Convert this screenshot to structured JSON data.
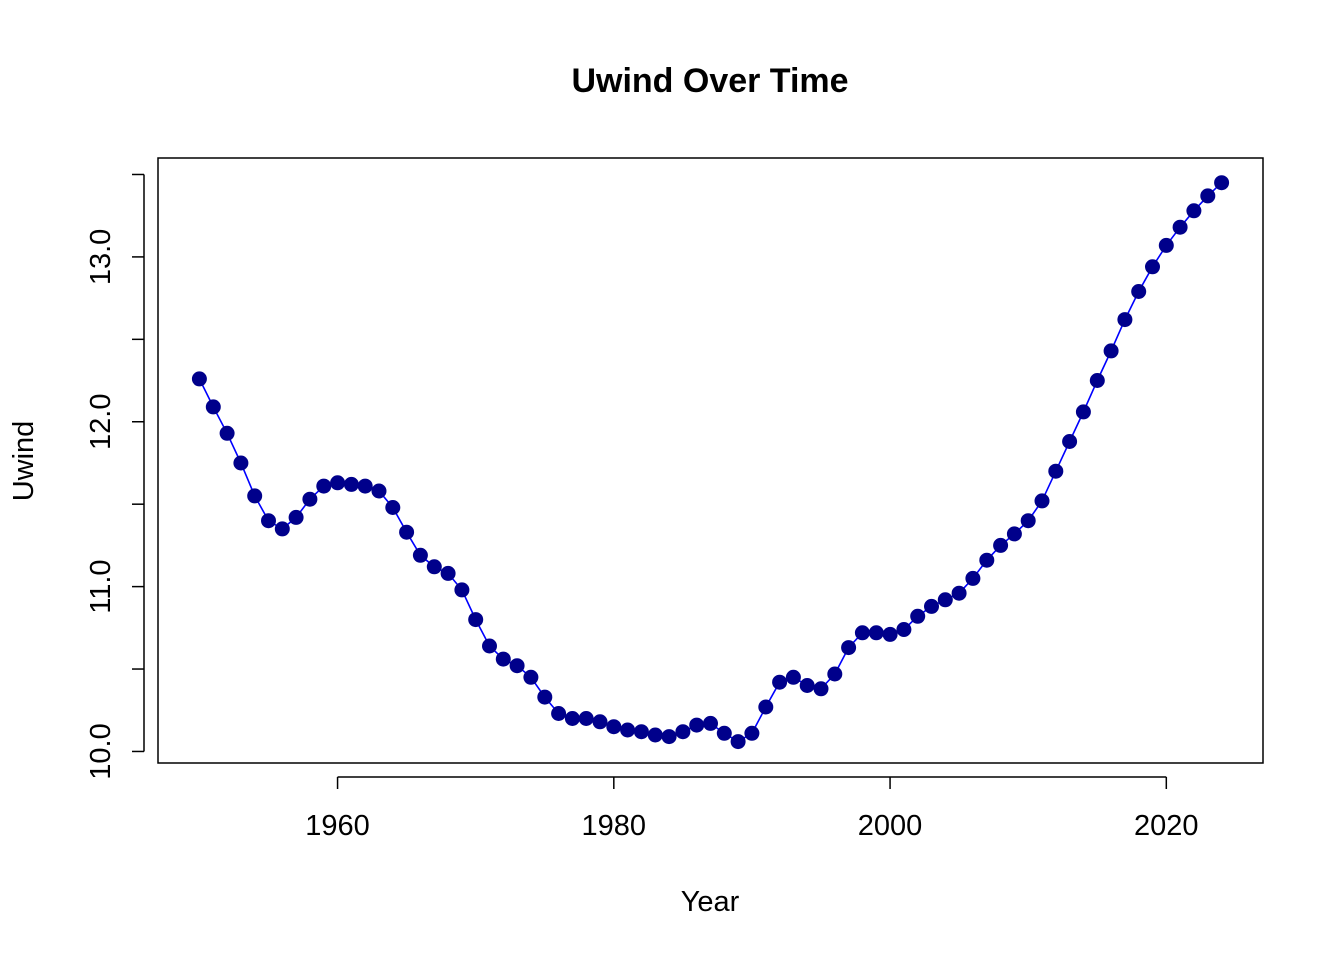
{
  "chart_data": {
    "type": "line",
    "title": "Uwind Over Time",
    "xlabel": "Year",
    "ylabel": "Uwind",
    "xlim": [
      1947,
      2027
    ],
    "ylim": [
      9.93,
      13.6
    ],
    "xticks": [
      1960,
      1980,
      2000,
      2020
    ],
    "yticks": [
      10.0,
      10.5,
      11.0,
      11.5,
      12.0,
      12.5,
      13.0,
      13.5
    ],
    "ytick_labels": [
      "10.0",
      "",
      "11.0",
      "",
      "12.0",
      "",
      "13.0",
      ""
    ],
    "line_color": "#0000ff",
    "point_color": "#00008b",
    "grid": false,
    "series": [
      {
        "x": [
          1950,
          1951,
          1952,
          1953,
          1954,
          1955,
          1956,
          1957,
          1958,
          1959,
          1960,
          1961,
          1962,
          1963,
          1964,
          1965,
          1966,
          1967,
          1968,
          1969,
          1970,
          1971,
          1972,
          1973,
          1974,
          1975,
          1976,
          1977,
          1978,
          1979,
          1980,
          1981,
          1982,
          1983,
          1984,
          1985,
          1986,
          1987,
          1988,
          1989,
          1990,
          1991,
          1992,
          1993,
          1994,
          1995,
          1996,
          1997,
          1998,
          1999,
          2000,
          2001,
          2002,
          2003,
          2004,
          2005,
          2006,
          2007,
          2008,
          2009,
          2010,
          2011,
          2012,
          2013,
          2014,
          2015,
          2016,
          2017,
          2018,
          2019,
          2020,
          2021,
          2022,
          2023,
          2024
        ],
        "values": [
          12.26,
          12.09,
          11.93,
          11.75,
          11.55,
          11.4,
          11.35,
          11.42,
          11.53,
          11.61,
          11.63,
          11.62,
          11.61,
          11.58,
          11.48,
          11.33,
          11.19,
          11.12,
          11.08,
          10.98,
          10.8,
          10.64,
          10.56,
          10.52,
          10.45,
          10.33,
          10.23,
          10.2,
          10.2,
          10.18,
          10.15,
          10.13,
          10.12,
          10.1,
          10.09,
          10.12,
          10.16,
          10.17,
          10.11,
          10.06,
          10.11,
          10.27,
          10.42,
          10.45,
          10.4,
          10.38,
          10.47,
          10.63,
          10.72,
          10.72,
          10.71,
          10.74,
          10.82,
          10.88,
          10.92,
          10.96,
          11.05,
          11.16,
          11.25,
          11.32,
          11.4,
          11.52,
          11.7,
          11.88,
          12.06,
          12.25,
          12.43,
          12.62,
          12.79,
          12.94,
          13.07,
          13.18,
          13.28,
          13.37,
          13.45
        ]
      }
    ]
  }
}
